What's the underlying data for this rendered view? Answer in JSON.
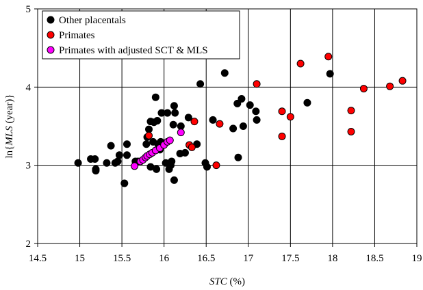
{
  "chart_data": {
    "type": "scatter",
    "xlabel": {
      "italic": "STC",
      "rest": " (%)"
    },
    "ylabel": {
      "prefix": "ln{",
      "italic": "MLS",
      "rest": " (year)}"
    },
    "xlim": [
      14.5,
      19
    ],
    "ylim": [
      2,
      5
    ],
    "xticks": [
      "14.5",
      "15",
      "15.5",
      "16",
      "16.5",
      "17",
      "17.5",
      "18",
      "18.5",
      "19"
    ],
    "yticks": [
      "2",
      "3",
      "4",
      "5"
    ],
    "grid": true,
    "legend_position": "top-left",
    "series": [
      {
        "name": "Other placentals",
        "color": "#000000",
        "points": [
          [
            14.98,
            3.03
          ],
          [
            15.13,
            3.08
          ],
          [
            15.18,
            3.08
          ],
          [
            15.19,
            2.95
          ],
          [
            15.19,
            2.93
          ],
          [
            15.32,
            3.03
          ],
          [
            15.37,
            3.25
          ],
          [
            15.42,
            3.03
          ],
          [
            15.45,
            3.05
          ],
          [
            15.47,
            3.13
          ],
          [
            15.53,
            2.77
          ],
          [
            15.56,
            3.27
          ],
          [
            15.56,
            3.13
          ],
          [
            15.66,
            3.05
          ],
          [
            15.69,
            3.05
          ],
          [
            15.79,
            3.27
          ],
          [
            15.8,
            3.36
          ],
          [
            15.82,
            3.46
          ],
          [
            15.84,
            3.56
          ],
          [
            15.84,
            2.98
          ],
          [
            15.87,
            3.3
          ],
          [
            15.88,
            3.55
          ],
          [
            15.9,
            3.87
          ],
          [
            15.91,
            2.95
          ],
          [
            15.92,
            3.57
          ],
          [
            15.93,
            3.27
          ],
          [
            15.95,
            3.2
          ],
          [
            15.96,
            3.3
          ],
          [
            15.97,
            3.67
          ],
          [
            16.02,
            3.03
          ],
          [
            16.04,
            3.67
          ],
          [
            16.06,
            2.95
          ],
          [
            16.08,
            3.0
          ],
          [
            16.09,
            3.05
          ],
          [
            16.11,
            3.52
          ],
          [
            16.12,
            3.76
          ],
          [
            16.13,
            3.67
          ],
          [
            16.12,
            2.81
          ],
          [
            16.19,
            3.15
          ],
          [
            16.2,
            3.5
          ],
          [
            16.25,
            3.16
          ],
          [
            16.29,
            3.61
          ],
          [
            16.39,
            3.27
          ],
          [
            16.43,
            4.04
          ],
          [
            16.49,
            3.03
          ],
          [
            16.51,
            2.98
          ],
          [
            16.58,
            3.58
          ],
          [
            16.72,
            4.18
          ],
          [
            16.82,
            3.47
          ],
          [
            16.87,
            3.79
          ],
          [
            16.88,
            3.1
          ],
          [
            16.92,
            3.85
          ],
          [
            16.94,
            3.5
          ],
          [
            17.02,
            3.77
          ],
          [
            17.09,
            3.69
          ],
          [
            17.1,
            3.58
          ],
          [
            17.7,
            3.8
          ],
          [
            17.97,
            4.17
          ]
        ]
      },
      {
        "name": "Primates",
        "color": "#ff0000",
        "points": [
          [
            15.82,
            3.38
          ],
          [
            16.3,
            3.26
          ],
          [
            16.33,
            3.23
          ],
          [
            16.36,
            3.56
          ],
          [
            16.62,
            3.0
          ],
          [
            16.66,
            3.53
          ],
          [
            17.1,
            4.04
          ],
          [
            17.4,
            3.69
          ],
          [
            17.4,
            3.37
          ],
          [
            17.5,
            3.62
          ],
          [
            17.62,
            4.3
          ],
          [
            17.95,
            4.39
          ],
          [
            18.22,
            3.7
          ],
          [
            18.22,
            3.43
          ],
          [
            18.37,
            3.98
          ],
          [
            18.68,
            4.01
          ],
          [
            18.83,
            4.08
          ]
        ]
      },
      {
        "name": "Primates with adjusted SCT & MLS",
        "color": "#ff00ff",
        "points": [
          [
            15.65,
            2.99
          ],
          [
            15.72,
            3.05
          ],
          [
            15.75,
            3.07
          ],
          [
            15.78,
            3.1
          ],
          [
            15.8,
            3.12
          ],
          [
            15.83,
            3.14
          ],
          [
            15.86,
            3.16
          ],
          [
            15.9,
            3.19
          ],
          [
            15.95,
            3.22
          ],
          [
            16.0,
            3.26
          ],
          [
            16.04,
            3.3
          ],
          [
            16.07,
            3.32
          ],
          [
            16.2,
            3.42
          ]
        ]
      }
    ]
  }
}
